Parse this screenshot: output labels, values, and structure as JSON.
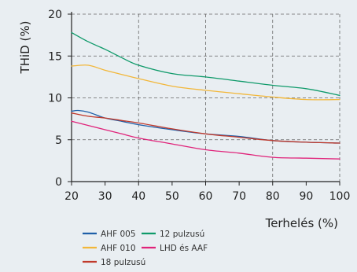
{
  "chart_data": {
    "type": "line",
    "title": "",
    "xlabel": "Terhelés (%)",
    "ylabel": "THiD (%)",
    "xlim": [
      20,
      100
    ],
    "ylim": [
      0,
      20
    ],
    "xticks": [
      20,
      30,
      40,
      50,
      60,
      70,
      80,
      90,
      100
    ],
    "yticks": [
      0,
      5,
      10,
      15,
      20
    ],
    "grid": "dashed",
    "legend_position": "bottom",
    "series": [
      {
        "name": "AHF 005",
        "color": "#1f5fa8",
        "x": [
          20,
          22,
          25,
          30,
          35,
          40,
          50,
          60,
          70,
          80,
          90,
          100
        ],
        "y": [
          8.4,
          8.5,
          8.3,
          7.6,
          7.2,
          6.8,
          6.2,
          5.7,
          5.4,
          4.9,
          4.7,
          4.6
        ]
      },
      {
        "name": "12 pulzusú",
        "color": "#0f9a6a",
        "x": [
          20,
          25,
          30,
          35,
          40,
          50,
          60,
          70,
          80,
          90,
          100
        ],
        "y": [
          17.8,
          16.7,
          15.8,
          14.8,
          13.9,
          12.9,
          12.5,
          12.0,
          11.5,
          11.1,
          10.3
        ]
      },
      {
        "name": "AHF 010",
        "color": "#f2b73a",
        "x": [
          20,
          25,
          30,
          35,
          40,
          50,
          60,
          70,
          80,
          90,
          100
        ],
        "y": [
          13.8,
          13.9,
          13.3,
          12.8,
          12.3,
          11.4,
          10.9,
          10.5,
          10.1,
          9.8,
          9.8
        ]
      },
      {
        "name": "LHD és AAF",
        "color": "#e0237a",
        "x": [
          20,
          25,
          30,
          35,
          40,
          50,
          60,
          70,
          80,
          90,
          100
        ],
        "y": [
          7.2,
          6.7,
          6.2,
          5.7,
          5.2,
          4.5,
          3.8,
          3.4,
          2.9,
          2.8,
          2.7
        ]
      },
      {
        "name": "18 pulzusú",
        "color": "#c0392b",
        "x": [
          20,
          25,
          30,
          35,
          40,
          50,
          60,
          70,
          80,
          90,
          100
        ],
        "y": [
          8.2,
          7.8,
          7.6,
          7.3,
          7.0,
          6.3,
          5.7,
          5.3,
          4.9,
          4.7,
          4.6
        ]
      }
    ]
  },
  "legend": [
    {
      "name": "AHF 005",
      "color": "#1f5fa8"
    },
    {
      "name": "12 pulzusú",
      "color": "#0f9a6a"
    },
    {
      "name": "AHF 010",
      "color": "#f2b73a"
    },
    {
      "name": "LHD és AAF",
      "color": "#e0237a"
    },
    {
      "name": "18 pulzusú",
      "color": "#c0392b"
    }
  ]
}
